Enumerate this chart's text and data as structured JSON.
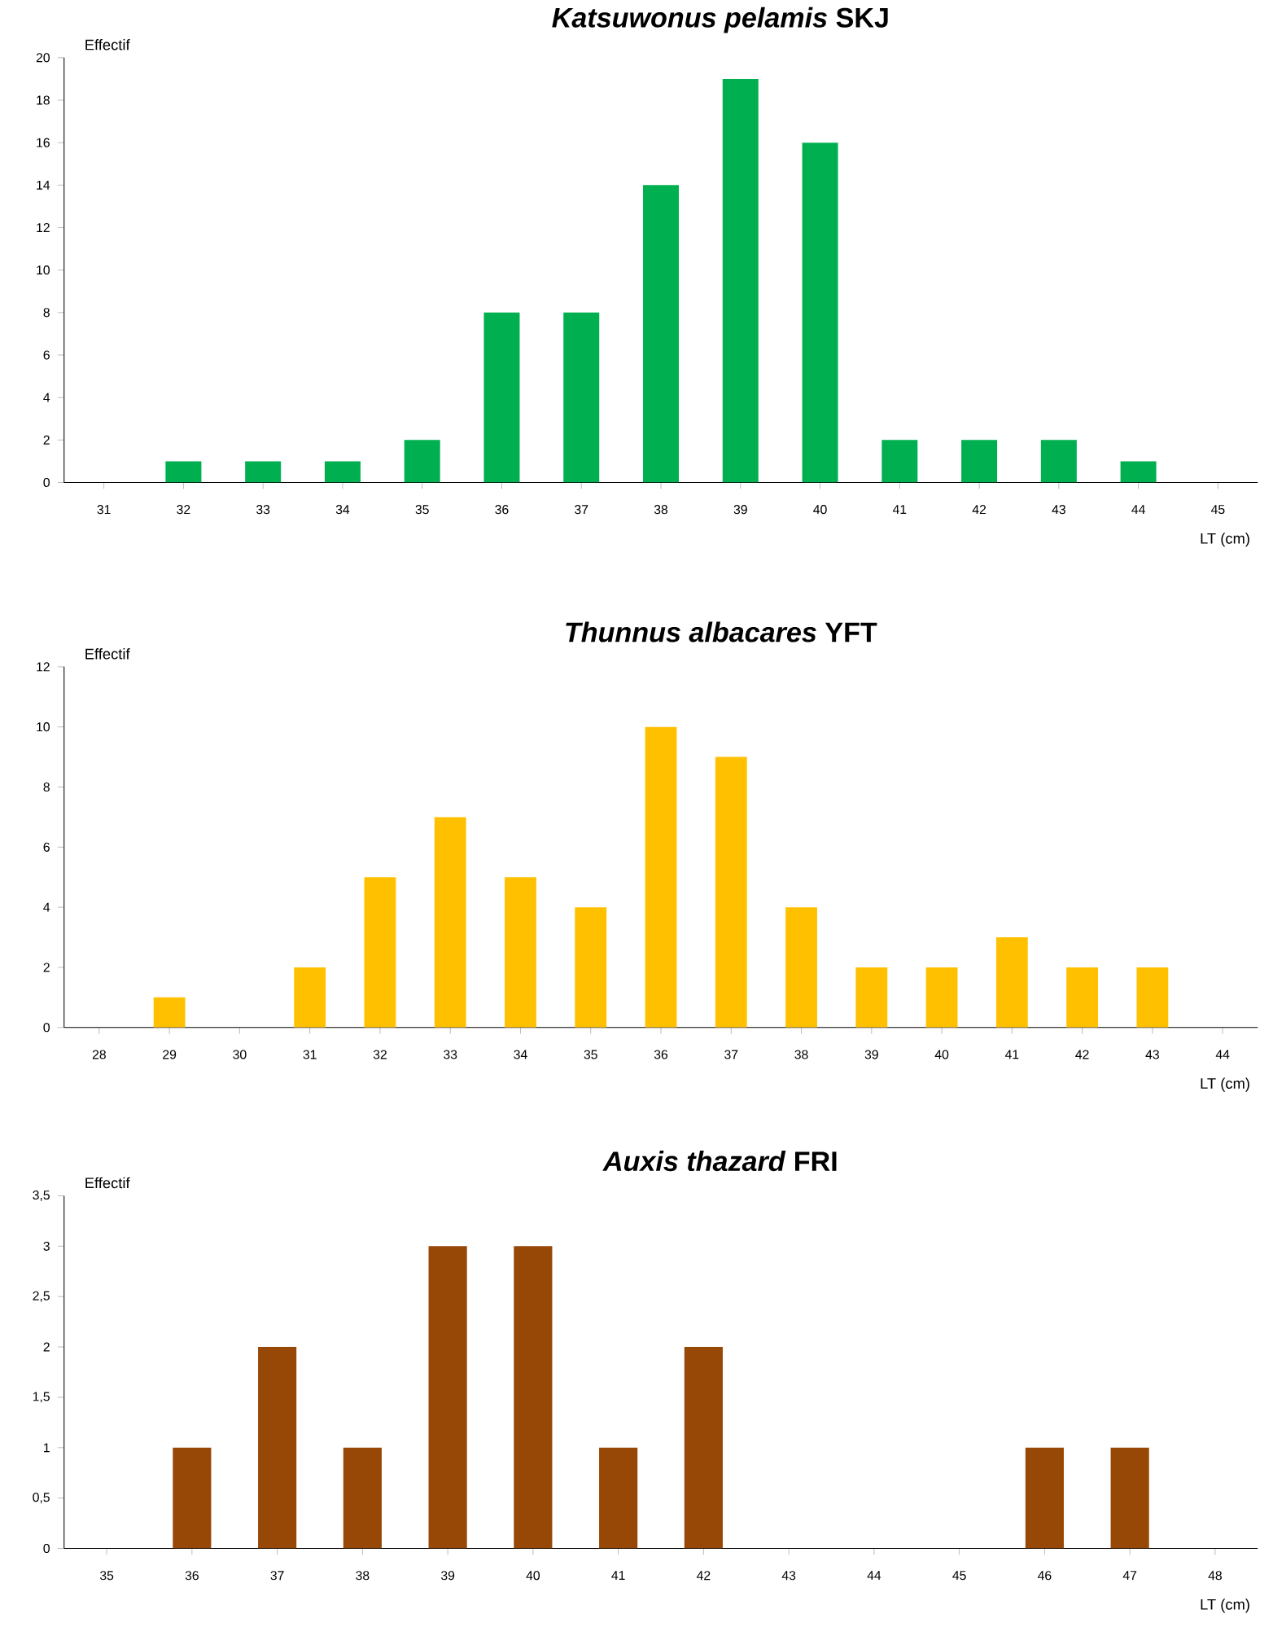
{
  "chart_data": [
    {
      "type": "bar",
      "title": "*Katsuwonus pelamis* SKJ",
      "ylabel": "Effectif",
      "xlabel": "LT (cm)",
      "categories": [
        "31",
        "32",
        "33",
        "34",
        "35",
        "36",
        "37",
        "38",
        "39",
        "40",
        "41",
        "42",
        "43",
        "44",
        "45"
      ],
      "values": [
        0,
        1,
        1,
        1,
        2,
        8,
        8,
        14,
        19,
        16,
        2,
        2,
        2,
        1,
        0
      ],
      "color": "#00b050",
      "ylim": [
        0,
        20
      ],
      "yticks": [
        0,
        2,
        4,
        6,
        8,
        10,
        12,
        14,
        16,
        18,
        20
      ]
    },
    {
      "type": "bar",
      "title": "*Thunnus albacares* YFT",
      "ylabel": "Effectif",
      "xlabel": "LT (cm)",
      "categories": [
        "28",
        "29",
        "30",
        "31",
        "32",
        "33",
        "34",
        "35",
        "36",
        "37",
        "38",
        "39",
        "40",
        "41",
        "42",
        "43",
        "44"
      ],
      "values": [
        0,
        1,
        0,
        2,
        5,
        7,
        5,
        4,
        10,
        9,
        4,
        2,
        2,
        3,
        2,
        2,
        0
      ],
      "color": "#ffc000",
      "ylim": [
        0,
        12
      ],
      "yticks": [
        0,
        2,
        4,
        6,
        8,
        10,
        12
      ]
    },
    {
      "type": "bar",
      "title": "*Auxis thazard* FRI",
      "ylabel": "Effectif",
      "xlabel": "LT (cm)",
      "categories": [
        "35",
        "36",
        "37",
        "38",
        "39",
        "40",
        "41",
        "42",
        "43",
        "44",
        "45",
        "46",
        "47",
        "48"
      ],
      "values": [
        0,
        1,
        2,
        1,
        3,
        3,
        1,
        2,
        0,
        0,
        0,
        1,
        1,
        0
      ],
      "color": "#974706",
      "ylim": [
        0,
        3.5
      ],
      "yticks": [
        0,
        {
          "value": 0.5,
          "label": "0,5"
        },
        1,
        {
          "value": 1.5,
          "label": "1,5"
        },
        2,
        {
          "value": 2.5,
          "label": "2,5"
        },
        3,
        {
          "value": 3.5,
          "label": "3,5"
        }
      ]
    }
  ]
}
